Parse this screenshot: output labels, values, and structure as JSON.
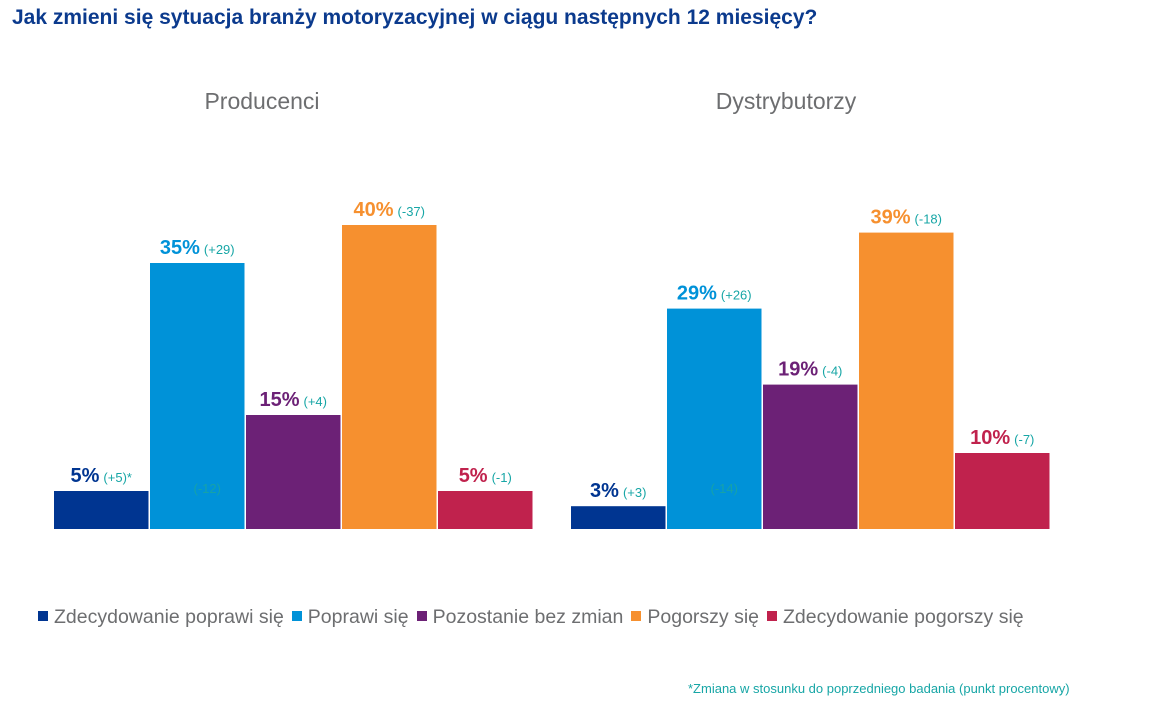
{
  "chart_data": {
    "type": "bar",
    "title": "Jak zmieni się sytuacja branży motoryzacyjnej w ciągu następnych 12 miesięcy?",
    "categories": [
      "Zdecydowanie poprawi się",
      "Poprawi się",
      "Pozostanie bez zmian",
      "Pogorszy się",
      "Zdecydowanie pogorszy się"
    ],
    "colors": [
      "#003591",
      "#0092d8",
      "#6c2176",
      "#f6902f",
      "#c0224d"
    ],
    "change_color": "#17a6a6",
    "ylim": [
      0,
      45
    ],
    "panels": [
      {
        "title": "Producenci",
        "values": [
          5,
          35,
          15,
          40,
          5
        ],
        "labels": [
          "5%",
          "35%",
          "15%",
          "40%",
          "5%"
        ],
        "changes": [
          "(+5)*",
          "(+29)",
          "(+4)",
          "(-37)",
          "(-1)"
        ],
        "inner_labels": [
          "",
          "(-12)",
          "",
          "",
          ""
        ]
      },
      {
        "title": "Dystrybutorzy",
        "values": [
          3,
          29,
          19,
          39,
          10
        ],
        "labels": [
          "3%",
          "29%",
          "19%",
          "39%",
          "10%"
        ],
        "changes": [
          "(+3)",
          "(+26)",
          "(-4)",
          "(-18)",
          "(-7)"
        ],
        "inner_labels": [
          "",
          "(-14)",
          "",
          "",
          ""
        ]
      }
    ],
    "legend_position": "bottom",
    "footnote": "*Zmiana w stosunku do poprzedniego badania (punkt procentowy)"
  }
}
